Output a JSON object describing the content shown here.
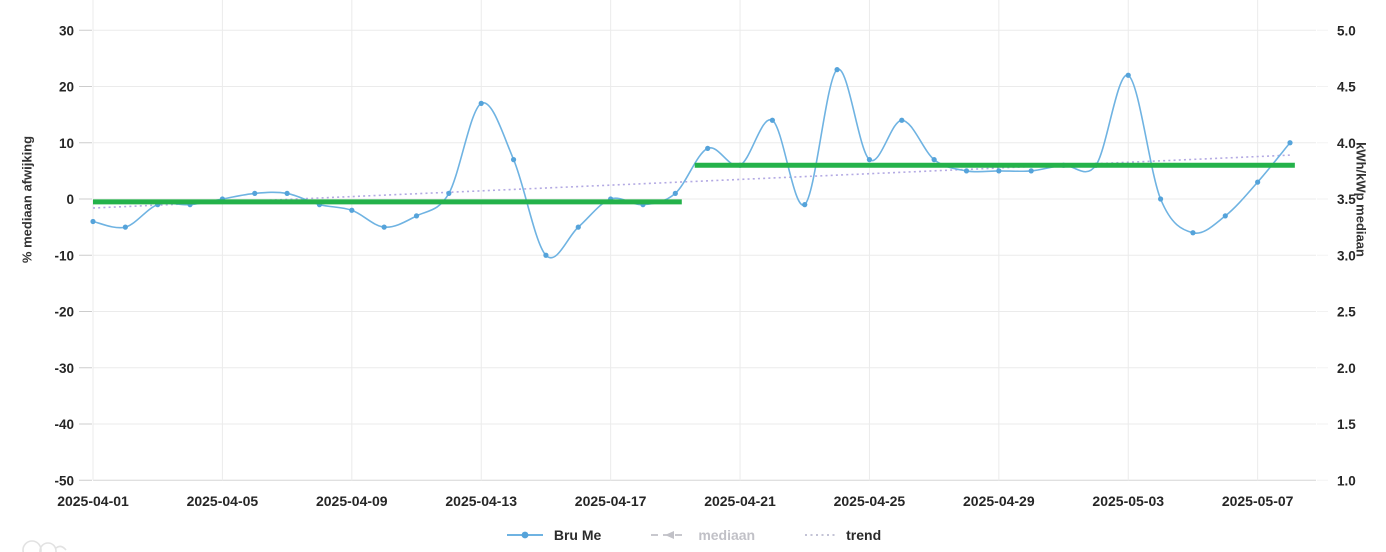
{
  "chart_data": {
    "type": "line",
    "title": "",
    "x": [
      "2025-04-01",
      "2025-04-02",
      "2025-04-03",
      "2025-04-04",
      "2025-04-05",
      "2025-04-06",
      "2025-04-07",
      "2025-04-08",
      "2025-04-09",
      "2025-04-10",
      "2025-04-11",
      "2025-04-12",
      "2025-04-13",
      "2025-04-14",
      "2025-04-15",
      "2025-04-16",
      "2025-04-17",
      "2025-04-18",
      "2025-04-19",
      "2025-04-20",
      "2025-04-21",
      "2025-04-22",
      "2025-04-23",
      "2025-04-24",
      "2025-04-25",
      "2025-04-26",
      "2025-04-27",
      "2025-04-28",
      "2025-04-29",
      "2025-04-30",
      "2025-05-01",
      "2025-05-02",
      "2025-05-03",
      "2025-05-04",
      "2025-05-05",
      "2025-05-06",
      "2025-05-07",
      "2025-05-08"
    ],
    "x_ticks": [
      "2025-04-01",
      "2025-04-05",
      "2025-04-09",
      "2025-04-13",
      "2025-04-17",
      "2025-04-21",
      "2025-04-25",
      "2025-04-29",
      "2025-05-03",
      "2025-05-07"
    ],
    "series": [
      {
        "name": "Bru Me",
        "kind": "line",
        "color": "#6fb3e2",
        "marker_color": "#55a3da",
        "values": [
          -4,
          -5,
          -1,
          -1,
          0,
          1,
          1,
          -1,
          -2,
          -5,
          -3,
          1,
          17,
          7,
          -10,
          -5,
          0,
          -1,
          1,
          9,
          6,
          14,
          -1,
          23,
          7,
          14,
          7,
          5,
          5,
          5,
          6,
          6,
          22,
          0,
          -6,
          -3,
          3,
          10
        ]
      },
      {
        "name": "mediaan",
        "kind": "level-segments",
        "color": "#24b24a",
        "segments": [
          {
            "start": "2025-04-01",
            "end": "2025-04-19",
            "start_day": 0,
            "end_day": 18.2,
            "value": -0.5
          },
          {
            "start": "2025-04-20",
            "end": "2025-05-08",
            "start_day": 18.6,
            "end_day": 37.15,
            "value": 6
          }
        ]
      },
      {
        "name": "trend",
        "kind": "trendline",
        "color": "#b3a9e3",
        "start_value": -1.6,
        "end_value": 7.8
      }
    ],
    "y_left": {
      "label": "% mediaan afwijking",
      "ticks": [
        30,
        20,
        10,
        0,
        -10,
        -20,
        -30,
        -40,
        -50
      ],
      "max": 30,
      "min": -50
    },
    "y_right": {
      "label": "kWh/kWp mediaan",
      "ticks": [
        "5.0",
        "4.5",
        "4.0",
        "3.5",
        "3.0",
        "2.5",
        "2.0",
        "1.5",
        "1.0"
      ],
      "max": 5.0,
      "min": 1.0
    },
    "grid": true,
    "legend_position": "bottom-center",
    "legend": [
      {
        "label": "Bru Me",
        "state": "active"
      },
      {
        "label": "mediaan",
        "state": "inactive"
      },
      {
        "label": "trend",
        "state": "active"
      }
    ],
    "inactive_color": "#c1c1c7",
    "grid_color": "#ebebeb",
    "axis_line_color": "#d6d6d6",
    "tick_color": "#cccccc",
    "text_color": "#262626"
  }
}
